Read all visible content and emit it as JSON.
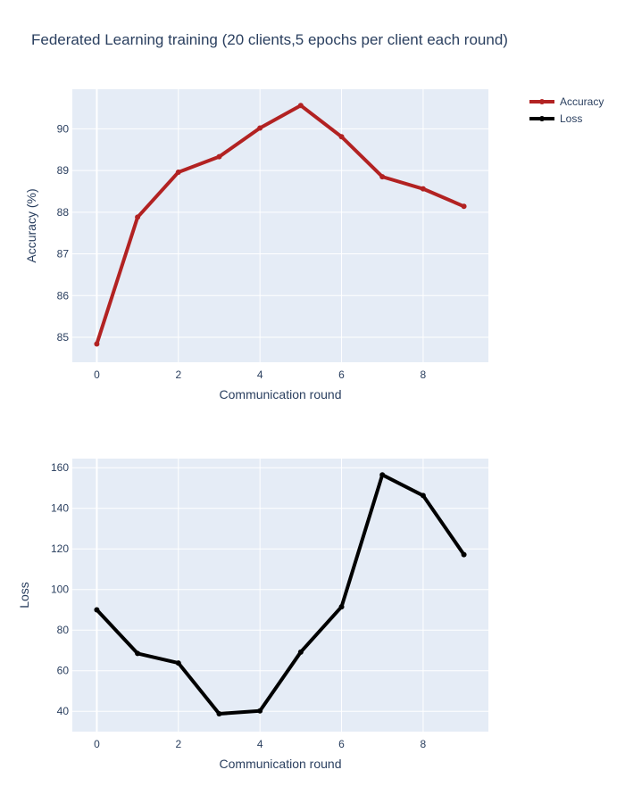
{
  "title": "Federated Learning training (20 clients,5 epochs per client each round)",
  "legend": {
    "placement": "top-right",
    "items": [
      {
        "label": "Accuracy",
        "color": "#b22222"
      },
      {
        "label": "Loss",
        "color": "#000000"
      }
    ]
  },
  "colors": {
    "plot_bg": "#e5ecf6",
    "grid": "#ffffff",
    "text": "#2a3f5f"
  },
  "chart_data": [
    {
      "type": "line",
      "series": [
        {
          "name": "Accuracy",
          "color": "#b22222",
          "x": [
            0,
            1,
            2,
            3,
            4,
            5,
            6,
            7,
            8,
            9
          ],
          "values": [
            84.84,
            87.88,
            88.96,
            89.33,
            90.02,
            90.56,
            89.81,
            88.85,
            88.56,
            88.14
          ]
        }
      ],
      "xlabel": "Communication round",
      "ylabel": "Accuracy (%)",
      "xlim": [
        -0.6,
        9.6
      ],
      "ylim": [
        84.4,
        90.95
      ],
      "xticks": [
        0,
        2,
        4,
        6,
        8
      ],
      "yticks": [
        85,
        86,
        87,
        88,
        89,
        90
      ],
      "grid": true
    },
    {
      "type": "line",
      "series": [
        {
          "name": "Loss",
          "color": "#000000",
          "x": [
            0,
            1,
            2,
            3,
            4,
            5,
            6,
            7,
            8,
            9
          ],
          "values": [
            90,
            68.5,
            63.8,
            38.8,
            40.2,
            69.2,
            91.5,
            156.5,
            146.3,
            117.2
          ]
        }
      ],
      "xlabel": "Communication round",
      "ylabel": "Loss",
      "xlim": [
        -0.6,
        9.6
      ],
      "ylim": [
        30,
        164.5
      ],
      "xticks": [
        0,
        2,
        4,
        6,
        8
      ],
      "yticks": [
        40,
        60,
        80,
        100,
        120,
        140,
        160
      ],
      "grid": true
    }
  ]
}
